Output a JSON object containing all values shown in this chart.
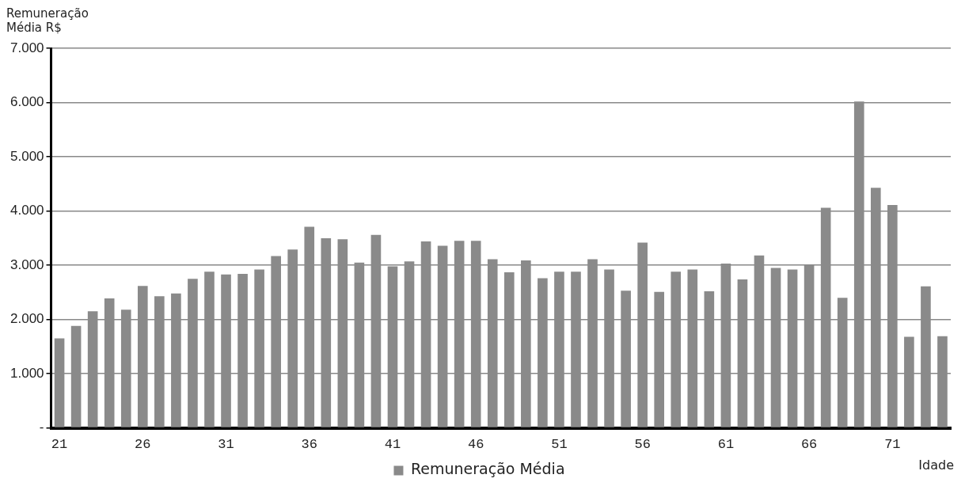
{
  "chart_data": {
    "type": "bar",
    "ylabel": "Remuneração Média R$",
    "xlabel": "Idade",
    "categories": [
      "21",
      null,
      null,
      null,
      null,
      "26",
      null,
      null,
      null,
      null,
      "31",
      null,
      null,
      null,
      null,
      "36",
      null,
      null,
      null,
      null,
      "41",
      null,
      null,
      null,
      null,
      "46",
      null,
      null,
      null,
      null,
      "51",
      null,
      null,
      null,
      null,
      "56",
      null,
      null,
      null,
      null,
      "61",
      null,
      null,
      null,
      null,
      "66",
      null,
      null,
      null,
      null,
      "71",
      null,
      null,
      null
    ],
    "series": [
      {
        "name": "Remuneração Média",
        "color": "#8a8a8a",
        "values": [
          1650,
          1880,
          2150,
          2390,
          2180,
          2620,
          2430,
          2480,
          2750,
          2880,
          2830,
          2840,
          2920,
          3170,
          3290,
          3710,
          3500,
          3480,
          3050,
          3560,
          2980,
          3070,
          3440,
          3360,
          3450,
          3450,
          3110,
          2870,
          3090,
          2760,
          2880,
          2880,
          3110,
          2920,
          2530,
          3420,
          2510,
          2880,
          2920,
          2520,
          3030,
          2740,
          3180,
          2950,
          2920,
          3010,
          4060,
          2400,
          6020,
          4430,
          4110,
          1680,
          2610,
          1690
        ]
      }
    ],
    "ylim": [
      0,
      7000
    ],
    "yticks": [
      {
        "value": 0,
        "label": "-"
      },
      {
        "value": 1000,
        "label": "1.000"
      },
      {
        "value": 2000,
        "label": "2.000"
      },
      {
        "value": 3000,
        "label": "3.000"
      },
      {
        "value": 4000,
        "label": "4.000"
      },
      {
        "value": 5000,
        "label": "5.000"
      },
      {
        "value": 6000,
        "label": "6.000"
      },
      {
        "value": 7000,
        "label": "7.000"
      }
    ],
    "grid": "y",
    "legend": "bottom"
  }
}
